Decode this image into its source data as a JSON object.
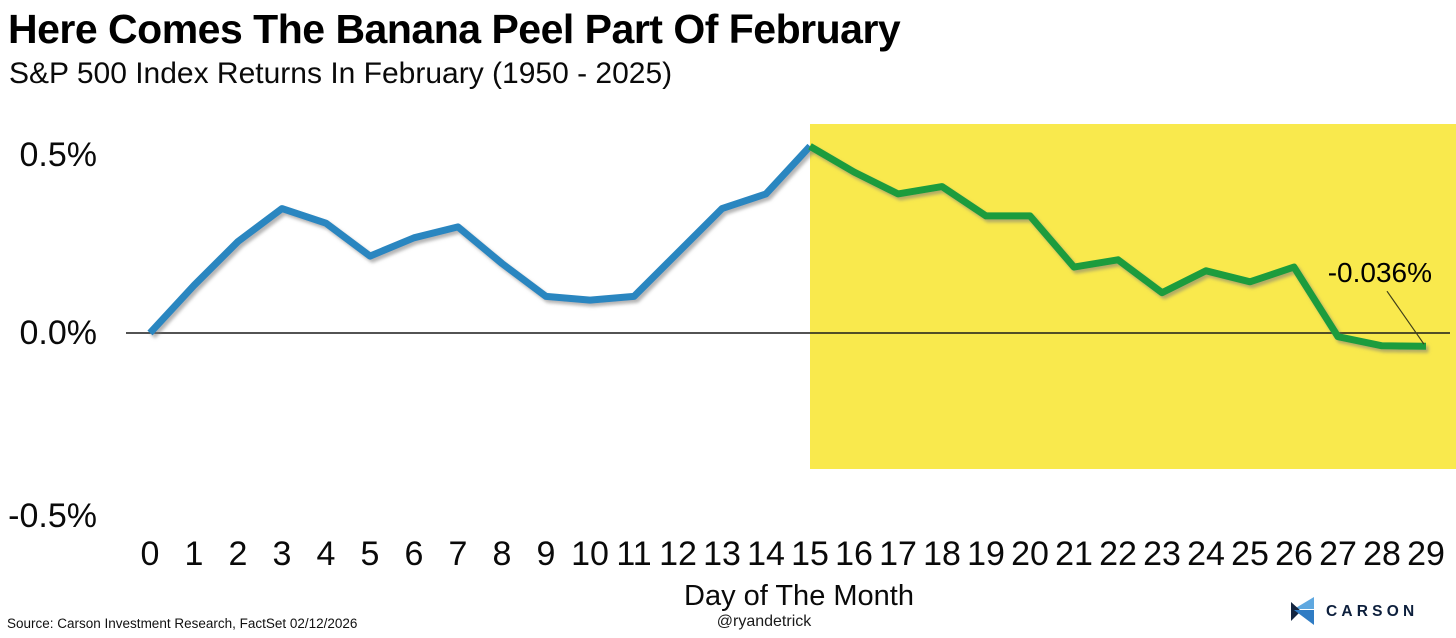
{
  "header": {
    "title": "Here Comes The Banana Peel Part Of February",
    "subtitle": "S&P 500 Index Returns In February (1950 - 2025)"
  },
  "chart_data": {
    "type": "line",
    "title": "Here Comes The Banana Peel Part Of February",
    "subtitle": "S&P 500 Index Returns In February (1950 - 2025)",
    "xlabel": "Day of The Month",
    "ylabel": "",
    "x_ticks": [
      0,
      1,
      2,
      3,
      4,
      5,
      6,
      7,
      8,
      9,
      10,
      11,
      12,
      13,
      14,
      15,
      16,
      17,
      18,
      19,
      20,
      21,
      22,
      23,
      24,
      25,
      26,
      27,
      28,
      29
    ],
    "y_tick_labels": [
      "0.5%",
      "0.0%",
      "-0.5%"
    ],
    "ylim": [
      -0.55,
      0.57
    ],
    "grid": false,
    "legend": "none",
    "series": [
      {
        "name": "days-0-to-15",
        "color": "#2a86c0",
        "x": [
          0,
          1,
          2,
          3,
          4,
          5,
          6,
          7,
          8,
          9,
          10,
          11,
          12,
          13,
          14,
          15
        ],
        "values": [
          0.0,
          0.13,
          0.25,
          0.34,
          0.3,
          0.21,
          0.26,
          0.29,
          0.19,
          0.1,
          0.09,
          0.1,
          0.22,
          0.34,
          0.38,
          0.51
        ]
      },
      {
        "name": "days-15-to-29",
        "color": "#1f9c3d",
        "x": [
          15,
          16,
          17,
          18,
          19,
          20,
          21,
          22,
          23,
          24,
          25,
          26,
          27,
          28,
          29
        ],
        "values": [
          0.51,
          0.44,
          0.38,
          0.4,
          0.32,
          0.32,
          0.18,
          0.2,
          0.11,
          0.17,
          0.14,
          0.18,
          -0.01,
          -0.035,
          -0.036
        ]
      }
    ],
    "highlight_region": {
      "from_x": 15,
      "color": "#f9e94d"
    },
    "annotation": {
      "label": "-0.036%",
      "x": 29,
      "value": -0.036
    }
  },
  "footer": {
    "source": "Source: Carson Investment Research, FactSet 02/12/2026",
    "handle": "@ryandetrick",
    "logo_text": "CARSON"
  }
}
